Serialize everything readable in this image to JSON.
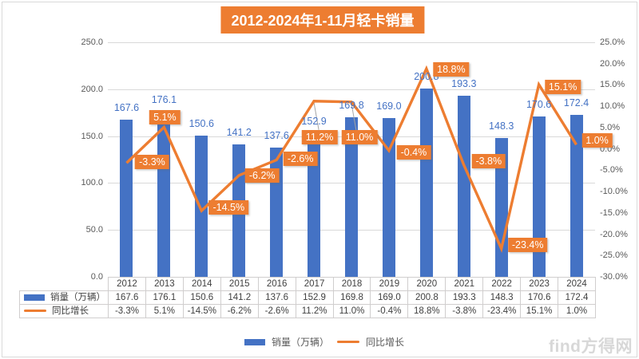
{
  "title": "2012-2024年1-11月轻卡销量",
  "legend": {
    "sales": "销量（万辆）",
    "growth": "同比增长"
  },
  "watermark": "find方得网",
  "colors": {
    "bar": "#4472C4",
    "bar_label": "#4472C4",
    "line": "#ED7D31",
    "title_bg": "#ED7D31",
    "title_text": "#FFFFFF",
    "label_box_bg": "#ED7D31",
    "label_box_text": "#FFFFFF",
    "axis_text": "#595959",
    "grid": "#D9D9D9",
    "table_border": "#D0CECE",
    "table_text": "#404040",
    "leader_line": "#A6A6A6",
    "watermark": "#D8D8D8"
  },
  "chart_data": {
    "type": "combo-bar-line",
    "title": "2012-2024年1-11月轻卡销量",
    "categories": [
      "2012",
      "2013",
      "2014",
      "2015",
      "2016",
      "2017",
      "2018",
      "2019",
      "2020",
      "2021",
      "2022",
      "2023",
      "2024"
    ],
    "series": [
      {
        "name": "销量（万辆）",
        "type": "bar",
        "axis": "left",
        "values": [
          167.6,
          176.1,
          150.6,
          141.2,
          137.6,
          152.9,
          169.8,
          169.0,
          200.8,
          193.3,
          148.3,
          170.6,
          172.4
        ],
        "labels": [
          "167.6",
          "176.1",
          "150.6",
          "141.2",
          "137.6",
          "152.9",
          "169.8",
          "169.0",
          "200.8",
          "193.3",
          "148.3",
          "170.6",
          "172.4"
        ]
      },
      {
        "name": "同比增长",
        "type": "line",
        "axis": "right",
        "values": [
          -3.3,
          5.1,
          -14.5,
          -6.2,
          -2.6,
          11.2,
          11.0,
          -0.4,
          18.8,
          -3.8,
          -23.4,
          15.1,
          1.0
        ],
        "labels": [
          "-3.3%",
          "5.1%",
          "-14.5%",
          "-6.2%",
          "-2.6%",
          "11.2%",
          "11.0%",
          "-0.4%",
          "18.8%",
          "-3.8%",
          "-23.4%",
          "15.1%",
          "1.0%"
        ]
      }
    ],
    "left_axis": {
      "min": 0,
      "max": 250,
      "step": 50,
      "ticks": [
        "250.0",
        "200.0",
        "150.0",
        "100.0",
        "50.0",
        "0.0"
      ]
    },
    "right_axis": {
      "min": -30,
      "max": 25,
      "step": 5,
      "ticks": [
        "25.0%",
        "20.0%",
        "15.0%",
        "10.0%",
        "5.0%",
        "0.0%",
        "-5.0%",
        "-10.0%",
        "-15.0%",
        "-20.0%",
        "-25.0%",
        "-30.0%"
      ]
    },
    "grid": true,
    "legend_position": "bottom",
    "data_table_shown": true
  }
}
